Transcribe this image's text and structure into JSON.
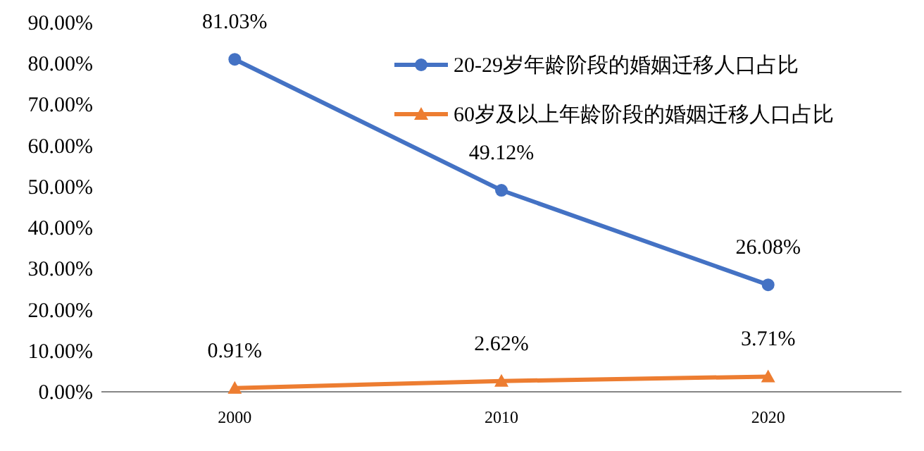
{
  "chart_data": {
    "type": "line",
    "categories": [
      "2000",
      "2010",
      "2020"
    ],
    "series": [
      {
        "name": "20-29岁年龄阶段的婚姻迁移人口占比",
        "color": "#4472c4",
        "values": [
          81.03,
          49.12,
          26.08
        ],
        "value_labels": [
          "81.03%",
          "49.12%",
          "26.08%"
        ],
        "marker": "circle"
      },
      {
        "name": "60岁及以上年龄阶段的婚姻迁移人口占比",
        "color": "#ed7d31",
        "values": [
          0.91,
          2.62,
          3.71
        ],
        "value_labels": [
          "0.91%",
          "2.62%",
          "3.71%"
        ],
        "marker": "triangle"
      }
    ],
    "ylim": [
      0,
      90
    ],
    "yticks": [
      {
        "value": 0,
        "label": "0.00%"
      },
      {
        "value": 10,
        "label": "10.00%"
      },
      {
        "value": 20,
        "label": "20.00%"
      },
      {
        "value": 30,
        "label": "30.00%"
      },
      {
        "value": 40,
        "label": "40.00%"
      },
      {
        "value": 50,
        "label": "50.00%"
      },
      {
        "value": 60,
        "label": "60.00%"
      },
      {
        "value": 70,
        "label": "70.00%"
      },
      {
        "value": 80,
        "label": "80.00%"
      },
      {
        "value": 90,
        "label": "90.00%"
      }
    ],
    "legend": "top right"
  }
}
